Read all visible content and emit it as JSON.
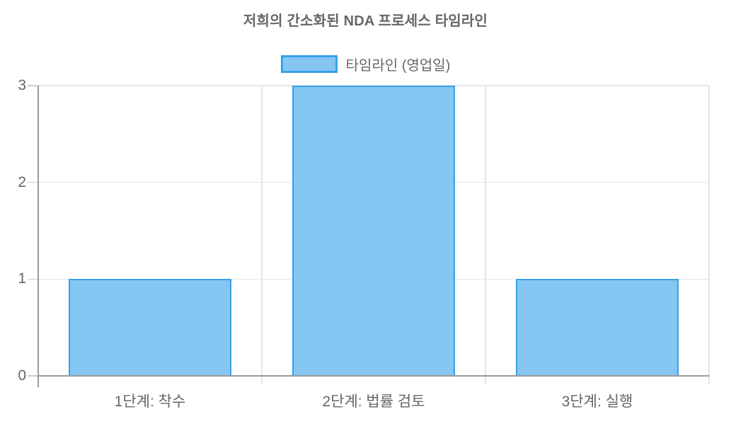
{
  "chart_data": {
    "type": "bar",
    "title": "저희의 간소화된 NDA 프로세스 타임라인",
    "legend": {
      "label": "타임라인 (영업일)",
      "position": "top"
    },
    "categories": [
      "1단계: 착수",
      "2단계: 법률 검토",
      "3단계: 실행"
    ],
    "series": [
      {
        "name": "타임라인 (영업일)",
        "values": [
          1,
          3,
          1
        ]
      }
    ],
    "xlabel": "",
    "ylabel": "",
    "ylim": [
      0,
      3
    ],
    "yticks": [
      0,
      1,
      2,
      3
    ],
    "grid": true,
    "colors": {
      "bar_fill": "#85C6F2",
      "bar_border": "#36A2EB",
      "grid_line": "#E5E5E5",
      "axis_line": "#9B9B9B",
      "tick_mark": "#CCCCCC",
      "text": "#666666"
    }
  }
}
